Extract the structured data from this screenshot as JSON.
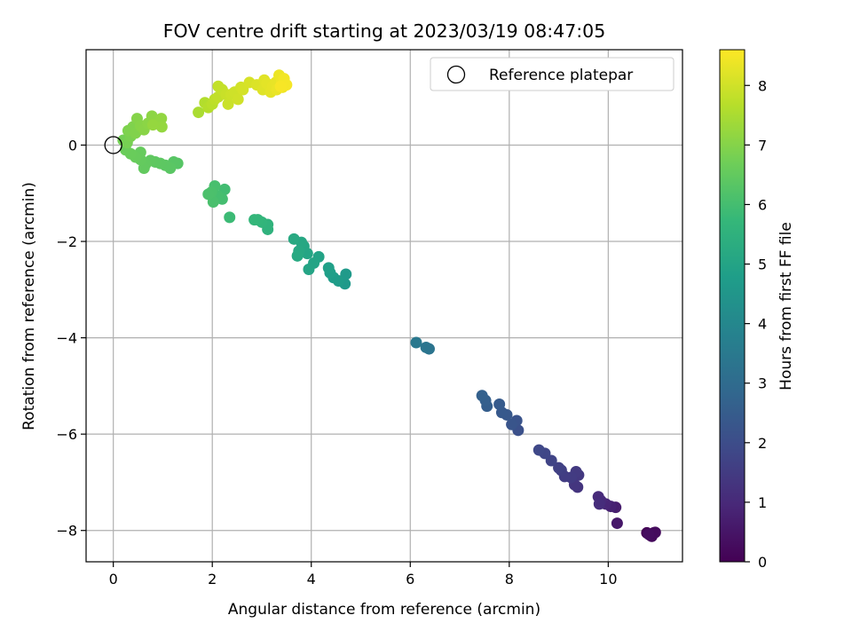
{
  "chart_data": {
    "type": "scatter",
    "title": "FOV centre drift starting at 2023/03/19 08:47:05",
    "xlabel": "Angular distance from reference (arcmin)",
    "ylabel": "Rotation from reference (arcmin)",
    "xlim": [
      -0.55,
      11.5
    ],
    "ylim": [
      -8.65,
      1.98
    ],
    "xticks": [
      0,
      2,
      4,
      6,
      8,
      10
    ],
    "yticks": [
      -8,
      -6,
      -4,
      -2,
      0
    ],
    "xtick_labels": [
      "0",
      "2",
      "4",
      "6",
      "8",
      "10"
    ],
    "ytick_labels": [
      "−8",
      "−6",
      "−4",
      "−2",
      "0"
    ],
    "grid": true,
    "legend": {
      "position": "top-right",
      "entries": [
        {
          "label": "Reference platepar",
          "marker": "open-circle"
        }
      ]
    },
    "reference_point": {
      "x": 0,
      "y": 0
    },
    "colorbar": {
      "label": "Hours from first FF file",
      "colormap": "viridis",
      "range": [
        0,
        8.6
      ],
      "ticks": [
        0,
        1,
        2,
        3,
        4,
        5,
        6,
        7,
        8
      ],
      "tick_labels": [
        "0",
        "1",
        "2",
        "3",
        "4",
        "5",
        "6",
        "7",
        "8"
      ]
    },
    "points": [
      {
        "x": 10.78,
        "y": -8.05,
        "h": 0.05
      },
      {
        "x": 10.85,
        "y": -8.1,
        "h": 0.1
      },
      {
        "x": 10.92,
        "y": -8.05,
        "h": 0.15
      },
      {
        "x": 10.88,
        "y": -8.12,
        "h": 0.2
      },
      {
        "x": 10.95,
        "y": -8.04,
        "h": 0.25
      },
      {
        "x": 10.82,
        "y": -8.08,
        "h": 0.3
      },
      {
        "x": 10.18,
        "y": -7.85,
        "h": 0.55
      },
      {
        "x": 10.15,
        "y": -7.52,
        "h": 0.7
      },
      {
        "x": 10.05,
        "y": -7.5,
        "h": 0.8
      },
      {
        "x": 9.95,
        "y": -7.45,
        "h": 0.9
      },
      {
        "x": 9.85,
        "y": -7.38,
        "h": 1.0
      },
      {
        "x": 9.8,
        "y": -7.3,
        "h": 1.05
      },
      {
        "x": 9.82,
        "y": -7.45,
        "h": 1.1
      },
      {
        "x": 9.38,
        "y": -7.1,
        "h": 1.3
      },
      {
        "x": 9.32,
        "y": -7.05,
        "h": 1.35
      },
      {
        "x": 9.4,
        "y": -6.85,
        "h": 1.4
      },
      {
        "x": 9.35,
        "y": -6.78,
        "h": 1.45
      },
      {
        "x": 9.25,
        "y": -6.9,
        "h": 1.5
      },
      {
        "x": 9.12,
        "y": -6.88,
        "h": 1.55
      },
      {
        "x": 9.05,
        "y": -6.75,
        "h": 1.6
      },
      {
        "x": 9.0,
        "y": -6.7,
        "h": 1.65
      },
      {
        "x": 8.85,
        "y": -6.55,
        "h": 1.75
      },
      {
        "x": 8.72,
        "y": -6.4,
        "h": 1.8
      },
      {
        "x": 8.6,
        "y": -6.33,
        "h": 1.85
      },
      {
        "x": 8.18,
        "y": -5.92,
        "h": 2.1
      },
      {
        "x": 8.15,
        "y": -5.72,
        "h": 2.2
      },
      {
        "x": 8.05,
        "y": -5.8,
        "h": 2.25
      },
      {
        "x": 7.95,
        "y": -5.6,
        "h": 2.35
      },
      {
        "x": 7.85,
        "y": -5.55,
        "h": 2.4
      },
      {
        "x": 7.8,
        "y": -5.38,
        "h": 2.45
      },
      {
        "x": 7.55,
        "y": -5.42,
        "h": 2.55
      },
      {
        "x": 7.52,
        "y": -5.3,
        "h": 2.6
      },
      {
        "x": 7.45,
        "y": -5.2,
        "h": 2.65
      },
      {
        "x": 6.38,
        "y": -4.23,
        "h": 3.3
      },
      {
        "x": 6.32,
        "y": -4.2,
        "h": 3.35
      },
      {
        "x": 6.12,
        "y": -4.1,
        "h": 3.45
      },
      {
        "x": 4.68,
        "y": -2.88,
        "h": 4.6
      },
      {
        "x": 4.7,
        "y": -2.68,
        "h": 4.65
      },
      {
        "x": 4.55,
        "y": -2.82,
        "h": 4.7
      },
      {
        "x": 4.45,
        "y": -2.75,
        "h": 4.75
      },
      {
        "x": 4.38,
        "y": -2.65,
        "h": 4.8
      },
      {
        "x": 4.35,
        "y": -2.55,
        "h": 4.85
      },
      {
        "x": 4.15,
        "y": -2.32,
        "h": 4.95
      },
      {
        "x": 4.05,
        "y": -2.45,
        "h": 5.0
      },
      {
        "x": 3.95,
        "y": -2.58,
        "h": 5.02
      },
      {
        "x": 3.92,
        "y": -2.25,
        "h": 5.05
      },
      {
        "x": 3.85,
        "y": -2.1,
        "h": 5.1
      },
      {
        "x": 3.8,
        "y": -2.02,
        "h": 5.12
      },
      {
        "x": 3.75,
        "y": -2.2,
        "h": 5.15
      },
      {
        "x": 3.72,
        "y": -2.3,
        "h": 5.18
      },
      {
        "x": 3.65,
        "y": -1.95,
        "h": 5.2
      },
      {
        "x": 3.12,
        "y": -1.75,
        "h": 5.5
      },
      {
        "x": 3.12,
        "y": -1.65,
        "h": 5.55
      },
      {
        "x": 3.0,
        "y": -1.6,
        "h": 5.6
      },
      {
        "x": 2.92,
        "y": -1.55,
        "h": 5.65
      },
      {
        "x": 2.85,
        "y": -1.55,
        "h": 5.7
      },
      {
        "x": 2.35,
        "y": -1.5,
        "h": 5.85
      },
      {
        "x": 2.25,
        "y": -0.92,
        "h": 5.95
      },
      {
        "x": 2.2,
        "y": -1.12,
        "h": 6.0
      },
      {
        "x": 2.1,
        "y": -1.05,
        "h": 6.02
      },
      {
        "x": 2.05,
        "y": -0.85,
        "h": 6.05
      },
      {
        "x": 2.02,
        "y": -1.18,
        "h": 6.08
      },
      {
        "x": 1.98,
        "y": -0.98,
        "h": 6.1
      },
      {
        "x": 1.92,
        "y": -1.02,
        "h": 6.12
      },
      {
        "x": 1.3,
        "y": -0.38,
        "h": 6.3
      },
      {
        "x": 1.22,
        "y": -0.35,
        "h": 6.32
      },
      {
        "x": 1.15,
        "y": -0.48,
        "h": 6.35
      },
      {
        "x": 1.05,
        "y": -0.42,
        "h": 6.38
      },
      {
        "x": 0.95,
        "y": -0.38,
        "h": 6.4
      },
      {
        "x": 0.85,
        "y": -0.35,
        "h": 6.42
      },
      {
        "x": 0.75,
        "y": -0.32,
        "h": 6.45
      },
      {
        "x": 0.65,
        "y": -0.4,
        "h": 6.48
      },
      {
        "x": 0.62,
        "y": -0.48,
        "h": 6.5
      },
      {
        "x": 0.55,
        "y": -0.3,
        "h": 6.52
      },
      {
        "x": 0.55,
        "y": -0.15,
        "h": 6.55
      },
      {
        "x": 0.45,
        "y": -0.25,
        "h": 6.58
      },
      {
        "x": 0.35,
        "y": -0.18,
        "h": 6.6
      },
      {
        "x": 0.25,
        "y": -0.1,
        "h": 6.62
      },
      {
        "x": 0.2,
        "y": 0.1,
        "h": 6.75
      },
      {
        "x": 0.28,
        "y": 0.05,
        "h": 6.8
      },
      {
        "x": 0.35,
        "y": 0.18,
        "h": 6.85
      },
      {
        "x": 0.3,
        "y": 0.3,
        "h": 6.9
      },
      {
        "x": 0.4,
        "y": 0.38,
        "h": 6.92
      },
      {
        "x": 0.45,
        "y": 0.25,
        "h": 6.95
      },
      {
        "x": 0.48,
        "y": 0.55,
        "h": 7.0
      },
      {
        "x": 0.55,
        "y": 0.4,
        "h": 7.02
      },
      {
        "x": 0.62,
        "y": 0.32,
        "h": 7.05
      },
      {
        "x": 0.7,
        "y": 0.45,
        "h": 7.08
      },
      {
        "x": 0.78,
        "y": 0.6,
        "h": 7.1
      },
      {
        "x": 0.85,
        "y": 0.5,
        "h": 7.12
      },
      {
        "x": 0.9,
        "y": 0.45,
        "h": 7.15
      },
      {
        "x": 0.97,
        "y": 0.55,
        "h": 7.18
      },
      {
        "x": 0.98,
        "y": 0.38,
        "h": 7.2
      },
      {
        "x": 0.8,
        "y": 0.42,
        "h": 7.22
      },
      {
        "x": 1.72,
        "y": 0.68,
        "h": 7.5
      },
      {
        "x": 1.85,
        "y": 0.88,
        "h": 7.6
      },
      {
        "x": 1.92,
        "y": 0.78,
        "h": 7.65
      },
      {
        "x": 2.0,
        "y": 0.85,
        "h": 7.7
      },
      {
        "x": 2.05,
        "y": 0.95,
        "h": 7.75
      },
      {
        "x": 2.12,
        "y": 1.0,
        "h": 7.8
      },
      {
        "x": 2.12,
        "y": 1.22,
        "h": 7.82
      },
      {
        "x": 2.2,
        "y": 1.15,
        "h": 7.85
      },
      {
        "x": 2.28,
        "y": 1.05,
        "h": 7.9
      },
      {
        "x": 2.32,
        "y": 0.85,
        "h": 7.92
      },
      {
        "x": 2.38,
        "y": 1.05,
        "h": 7.95
      },
      {
        "x": 2.45,
        "y": 1.1,
        "h": 7.98
      },
      {
        "x": 2.52,
        "y": 0.95,
        "h": 8.0
      },
      {
        "x": 2.58,
        "y": 1.2,
        "h": 8.02
      },
      {
        "x": 2.62,
        "y": 1.15,
        "h": 8.05
      },
      {
        "x": 2.75,
        "y": 1.3,
        "h": 8.1
      },
      {
        "x": 2.9,
        "y": 1.25,
        "h": 8.15
      },
      {
        "x": 3.02,
        "y": 1.15,
        "h": 8.2
      },
      {
        "x": 3.05,
        "y": 1.35,
        "h": 8.22
      },
      {
        "x": 3.1,
        "y": 1.28,
        "h": 8.25
      },
      {
        "x": 3.18,
        "y": 1.1,
        "h": 8.28
      },
      {
        "x": 3.22,
        "y": 1.22,
        "h": 8.3
      },
      {
        "x": 3.28,
        "y": 1.3,
        "h": 8.32
      },
      {
        "x": 3.3,
        "y": 1.15,
        "h": 8.35
      },
      {
        "x": 3.35,
        "y": 1.45,
        "h": 8.38
      },
      {
        "x": 3.4,
        "y": 1.32,
        "h": 8.4
      },
      {
        "x": 3.42,
        "y": 1.2,
        "h": 8.42
      },
      {
        "x": 3.45,
        "y": 1.38,
        "h": 8.45
      },
      {
        "x": 3.5,
        "y": 1.25,
        "h": 8.5
      },
      {
        "x": 3.38,
        "y": 1.22,
        "h": 8.52
      }
    ]
  }
}
